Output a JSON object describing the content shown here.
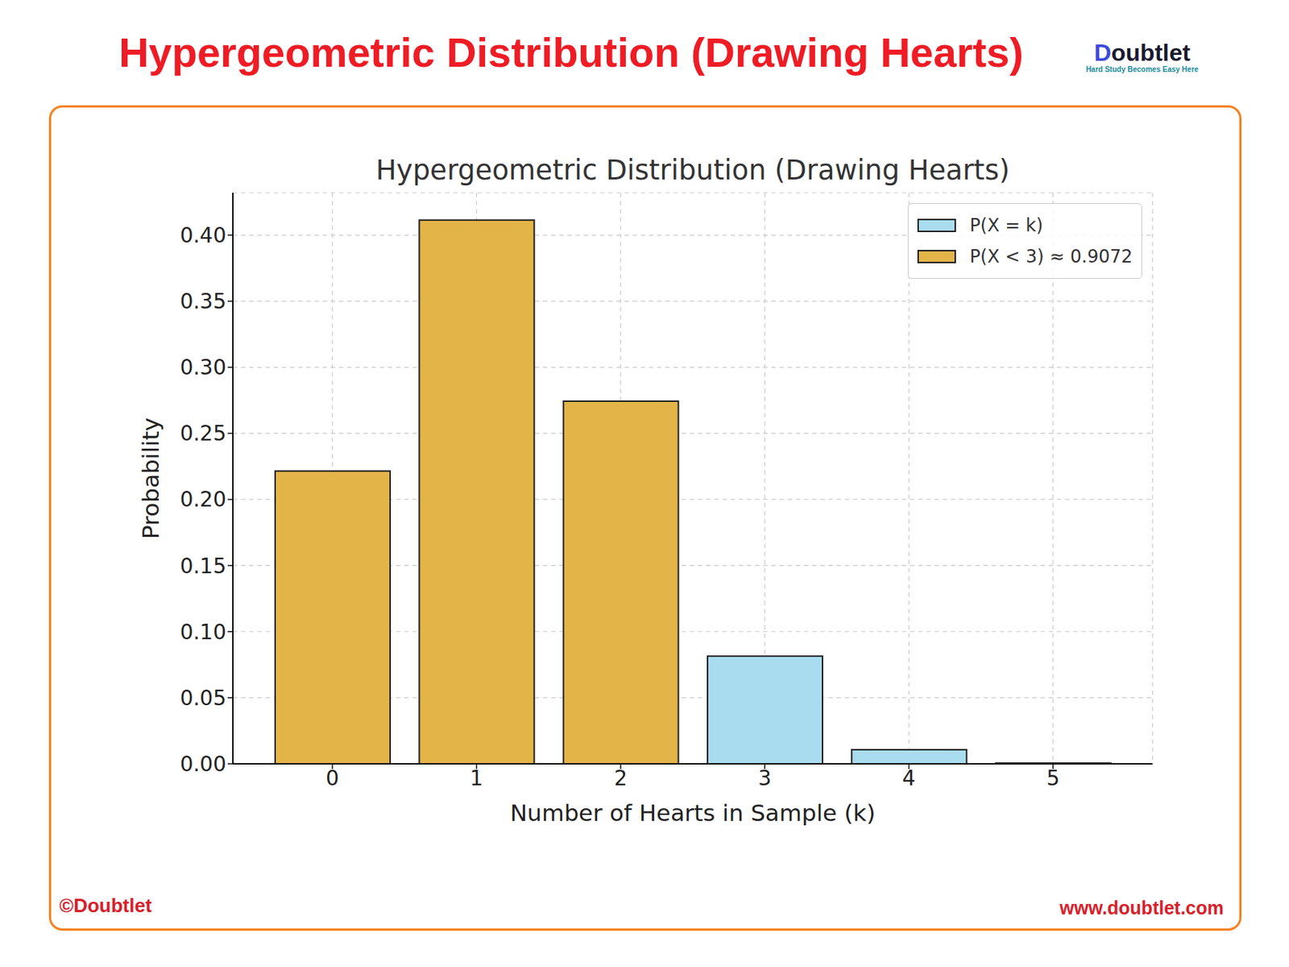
{
  "header": {
    "title": "Hypergeometric Distribution (Drawing Hearts)",
    "logo": "Doubtlet",
    "tagline": "Hard Study Becomes Easy Here"
  },
  "footer": {
    "left": "©Doubtlet",
    "right": "www.doubtlet.com"
  },
  "chart_data": {
    "type": "bar",
    "title": "Hypergeometric Distribution (Drawing Hearts)",
    "x_label": "Number of Hearts in Sample (k)",
    "y_label": "Probability",
    "categories": [
      "0",
      "1",
      "2",
      "3",
      "4",
      "5"
    ],
    "series": [
      {
        "name": "P(X = k)",
        "color": "#a9dcee",
        "values": [
          null,
          null,
          null,
          0.0815,
          0.0107,
          0.0005
        ]
      },
      {
        "name": "P(X < 3) ≈ 0.9072",
        "color": "#e3b448",
        "values": [
          0.2215,
          0.4114,
          0.2743,
          null,
          null,
          null
        ]
      }
    ],
    "stacked": true,
    "ylim": [
      0,
      0.432
    ],
    "yticks": [
      {
        "value": 0,
        "label": "0.00"
      },
      {
        "value": 0.05,
        "label": "0.05"
      },
      {
        "value": 0.1,
        "label": "0.10"
      },
      {
        "value": 0.15,
        "label": "0.15"
      },
      {
        "value": 0.2,
        "label": "0.20"
      },
      {
        "value": 0.25,
        "label": "0.25"
      },
      {
        "value": 0.3,
        "label": "0.30"
      },
      {
        "value": 0.35,
        "label": "0.35"
      },
      {
        "value": 0.4,
        "label": "0.40"
      }
    ],
    "grid": true,
    "legend": "upper right"
  }
}
